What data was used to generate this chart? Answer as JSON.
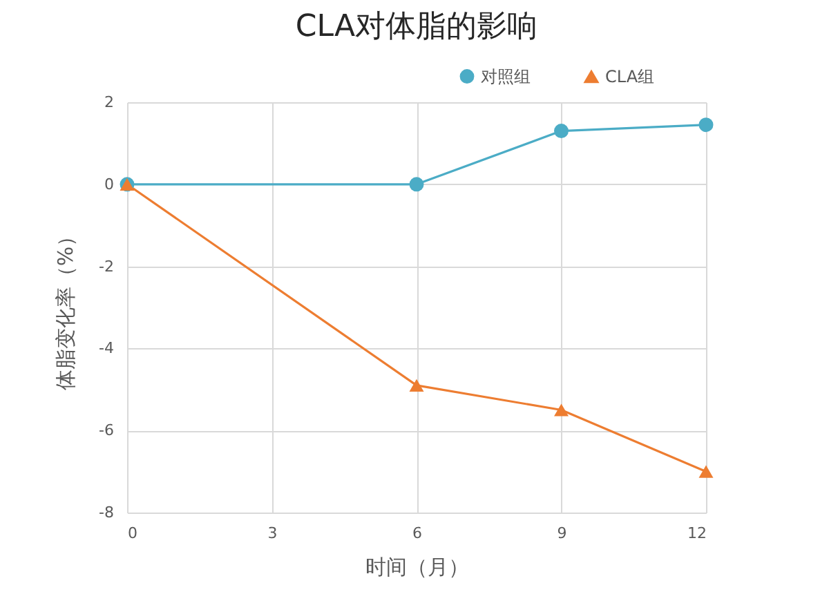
{
  "chart_data": {
    "type": "line",
    "title": "CLA对体脂的影响",
    "xlabel": "时间（月）",
    "ylabel": "体脂变化率（%）",
    "x": [
      0,
      6,
      9,
      12
    ],
    "series": [
      {
        "name": "对照组",
        "color": "#4bacc6",
        "marker": "circle",
        "values": [
          0,
          0,
          1.3,
          1.45
        ]
      },
      {
        "name": "CLA组",
        "color": "#ed7d31",
        "marker": "triangle",
        "values": [
          0,
          -4.9,
          -5.5,
          -7.0
        ]
      }
    ],
    "xlim": [
      0,
      12
    ],
    "xticks": [
      0,
      3,
      6,
      9,
      12
    ],
    "ylim": [
      -8,
      2
    ],
    "yticks": [
      -8,
      -6,
      -4,
      -2,
      0,
      2
    ],
    "grid": true,
    "legend": "top right",
    "line_style": "solid"
  }
}
